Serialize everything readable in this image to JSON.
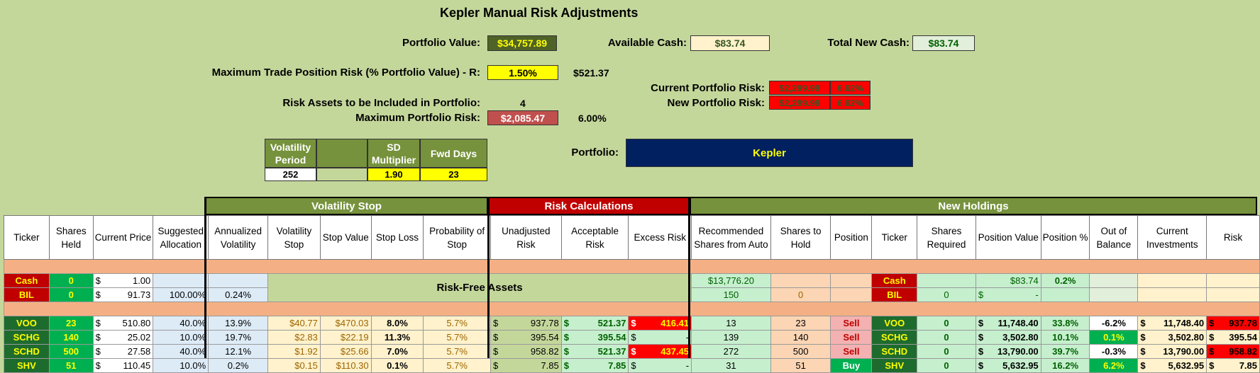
{
  "title": "Kepler Manual Risk Adjustments",
  "summary": {
    "portfolio_value_label": "Portfolio Value:",
    "portfolio_value": "$34,757.89",
    "available_cash_label": "Available Cash:",
    "available_cash": "$83.74",
    "total_new_cash_label": "Total New Cash:",
    "total_new_cash": "$83.74",
    "max_trade_risk_label": "Maximum Trade Position Risk (% Portfolio Value) - R:",
    "max_trade_risk_pct": "1.50%",
    "max_trade_risk_amt": "$521.37",
    "risk_assets_label": "Risk Assets to be Included in Portfolio:",
    "risk_assets_count": "4",
    "max_portfolio_risk_label": "Maximum Portfolio Risk:",
    "max_portfolio_risk_amt": "$2,085.47",
    "max_portfolio_risk_pct": "6.00%",
    "current_risk_label": "Current Portfolio Risk:",
    "current_risk_amt": "$2,299.99",
    "current_risk_pct": "6.62%",
    "new_risk_label": "New Portfolio Risk:",
    "new_risk_amt": "$2,299.99",
    "new_risk_pct": "6.62%",
    "portfolio_label": "Portfolio:",
    "portfolio_name": "Kepler"
  },
  "params": {
    "vol_period_label": "Volatility Period",
    "vol_period": "252",
    "sd_mult_label": "SD Multiplier",
    "sd_mult": "1.90",
    "fwd_days_label": "Fwd Days",
    "fwd_days": "23"
  },
  "sections": {
    "volatility_stop": "Volatility Stop",
    "risk_calculations": "Risk Calculations",
    "new_holdings": "New Holdings",
    "risk_free_assets": "Risk-Free Assets"
  },
  "headers": [
    "Ticker",
    "Shares Held",
    "Current Price",
    "Suggested Allocation",
    "Annualized Volatility",
    "Volatility Stop",
    "Stop Value",
    "Stop Loss",
    "Probability of Stop",
    "Unadjusted Risk",
    "Acceptable Risk",
    "Excess Risk",
    "Recommended Shares from Auto",
    "Shares to Hold",
    "Position",
    "Ticker",
    "Shares Required",
    "Position Value",
    "Position %",
    "Out of Balance",
    "Current Investments",
    "Risk"
  ],
  "riskfree": [
    {
      "ticker": "Cash",
      "shares": "0",
      "price": "1.00",
      "alloc": "",
      "vol": "",
      "rec": "$13,776.20",
      "hold": "",
      "ticker2": "Cash",
      "req": "",
      "pos_value": "$83.74",
      "pos_pct": "0.2%"
    },
    {
      "ticker": "BIL",
      "shares": "0",
      "price": "91.73",
      "alloc": "100.00%",
      "vol": "0.24%",
      "rec": "150",
      "hold": "0",
      "ticker2": "BIL",
      "req": "0",
      "pos_value": "-",
      "pos_pct": ""
    }
  ],
  "rows": [
    {
      "ticker": "VOO",
      "shares": "23",
      "price": "510.80",
      "alloc": "40.0%",
      "vol": "13.9%",
      "vstop": "$40.77",
      "stopval": "$470.03",
      "stoploss": "8.0%",
      "prob": "5.7%",
      "unadj": "937.78",
      "accept": "521.37",
      "excess": "416.41",
      "rec": "13",
      "hold": "23",
      "position": "Sell",
      "ticker2": "VOO",
      "req": "0",
      "pos_value": "11,748.40",
      "pos_pct": "33.8%",
      "oob": "-6.2%",
      "curinv": "11,748.40",
      "risk": "937.78"
    },
    {
      "ticker": "SCHG",
      "shares": "140",
      "price": "25.02",
      "alloc": "10.0%",
      "vol": "19.7%",
      "vstop": "$2.83",
      "stopval": "$22.19",
      "stoploss": "11.3%",
      "prob": "5.7%",
      "unadj": "395.54",
      "accept": "395.54",
      "excess": "-",
      "rec": "139",
      "hold": "140",
      "position": "Sell",
      "ticker2": "SCHG",
      "req": "0",
      "pos_value": "3,502.80",
      "pos_pct": "10.1%",
      "oob": "0.1%",
      "curinv": "3,502.80",
      "risk": "395.54"
    },
    {
      "ticker": "SCHD",
      "shares": "500",
      "price": "27.58",
      "alloc": "40.0%",
      "vol": "12.1%",
      "vstop": "$1.92",
      "stopval": "$25.66",
      "stoploss": "7.0%",
      "prob": "5.7%",
      "unadj": "958.82",
      "accept": "521.37",
      "excess": "437.45",
      "rec": "272",
      "hold": "500",
      "position": "Sell",
      "ticker2": "SCHD",
      "req": "0",
      "pos_value": "13,790.00",
      "pos_pct": "39.7%",
      "oob": "-0.3%",
      "curinv": "13,790.00",
      "risk": "958.82"
    },
    {
      "ticker": "SHV",
      "shares": "51",
      "price": "110.45",
      "alloc": "10.0%",
      "vol": "0.2%",
      "vstop": "$0.15",
      "stopval": "$110.30",
      "stoploss": "0.1%",
      "prob": "5.7%",
      "unadj": "7.85",
      "accept": "7.85",
      "excess": "-",
      "rec": "31",
      "hold": "51",
      "position": "Buy",
      "ticker2": "SHV",
      "req": "0",
      "pos_value": "5,632.95",
      "pos_pct": "16.2%",
      "oob": "6.2%",
      "curinv": "5,632.95",
      "risk": "7.85"
    }
  ],
  "currency_symbol": "$"
}
